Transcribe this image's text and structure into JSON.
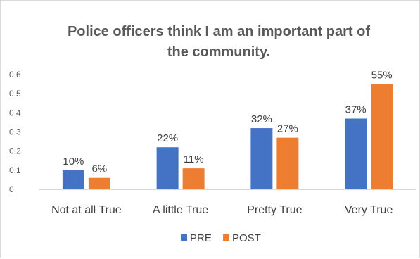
{
  "chart_data": {
    "type": "bar",
    "title": "Police officers think I am an important part of the community.",
    "title_lines": [
      "Police officers think I am an important part of",
      "the community."
    ],
    "categories": [
      "Not at all True",
      "A little True",
      "Pretty True",
      "Very True"
    ],
    "series": [
      {
        "name": "PRE",
        "color": "#4472c4",
        "values": [
          0.1,
          0.22,
          0.32,
          0.37
        ],
        "labels": [
          "10%",
          "22%",
          "32%",
          "37%"
        ]
      },
      {
        "name": "POST",
        "color": "#ed7d31",
        "values": [
          0.06,
          0.11,
          0.27,
          0.55
        ],
        "labels": [
          "6%",
          "11%",
          "27%",
          "55%"
        ]
      }
    ],
    "yticks": [
      "0",
      "0.1",
      "0.2",
      "0.3",
      "0.4",
      "0.5",
      "0.6"
    ],
    "ylim": [
      0,
      0.6
    ],
    "grid": false,
    "legend_position": "bottom"
  }
}
